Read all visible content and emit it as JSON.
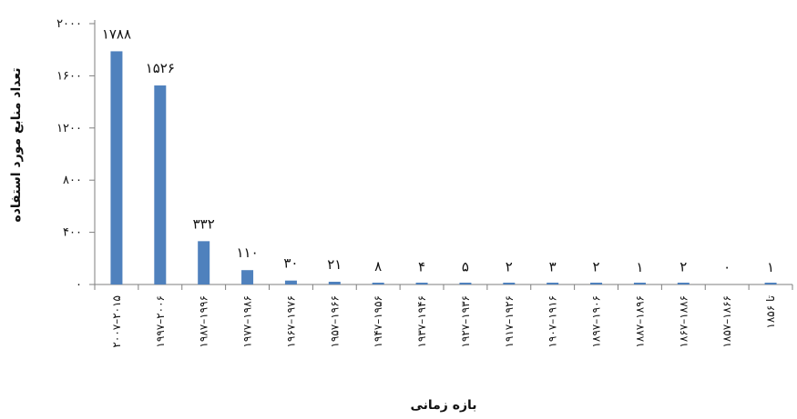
{
  "chart_data": {
    "type": "bar",
    "direction": "rtl",
    "xlabel": "بازه زمانی",
    "ylabel": "تعداد منابع مورد استفاده",
    "ylim": [
      0,
      2000
    ],
    "yticks": [
      0,
      400,
      800,
      1200,
      1600,
      2000
    ],
    "ytick_labels": [
      "۰",
      "۴۰۰",
      "۸۰۰",
      "۱۲۰۰",
      "۱۶۰۰",
      "۲۰۰۰"
    ],
    "categories": [
      "۲۰۰۷–۲۰۱۵",
      "۱۹۹۷–۲۰۰۶",
      "۱۹۸۷–۱۹۹۶",
      "۱۹۷۷–۱۹۸۶",
      "۱۹۶۷–۱۹۷۶",
      "۱۹۵۷–۱۹۶۶",
      "۱۹۴۷–۱۹۵۶",
      "۱۹۳۷–۱۹۴۶",
      "۱۹۲۷–۱۹۳۶",
      "۱۹۱۷–۱۹۲۶",
      "۱۹۰۷–۱۹۱۶",
      "۱۸۹۷–۱۹۰۶",
      "۱۸۸۷–۱۸۹۶",
      "۱۸۶۷–۱۸۸۶",
      "۱۸۵۷–۱۸۶۶",
      "تا ۱۸۵۶"
    ],
    "values": [
      1788,
      1526,
      332,
      110,
      30,
      21,
      8,
      4,
      5,
      2,
      3,
      2,
      1,
      2,
      0,
      1
    ],
    "value_labels": [
      "۱۷۸۸",
      "۱۵۲۶",
      "۳۳۲",
      "۱۱۰",
      "۳۰",
      "۲۱",
      "۸",
      "۴",
      "۵",
      "۲",
      "۳",
      "۲",
      "۱",
      "۲",
      "۰",
      "۱"
    ],
    "bar_color": "#4F81BD",
    "grid": false,
    "legend": "none"
  }
}
